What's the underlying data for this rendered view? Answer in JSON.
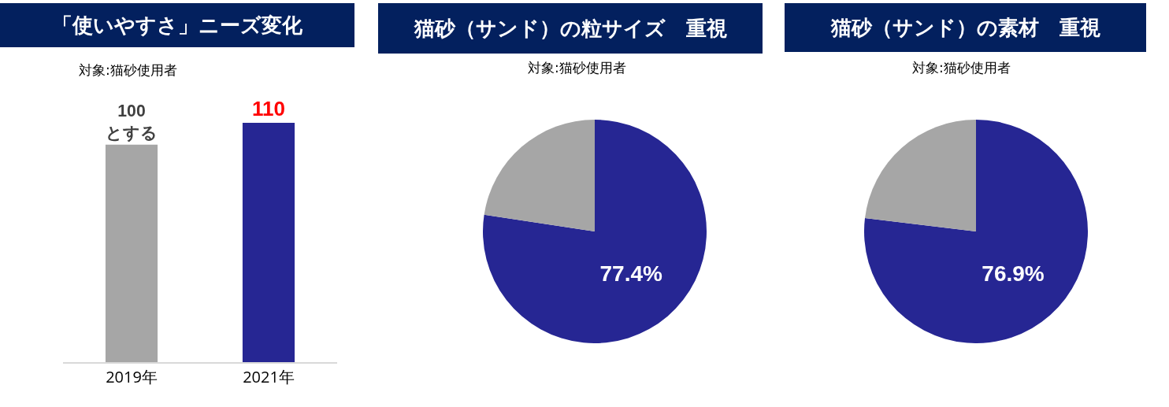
{
  "chart_data": [
    {
      "type": "bar",
      "title": "「使いやすさ」ニーズ変化",
      "subtitle": "対象:猫砂使用者",
      "categories": [
        "2019年",
        "2021年"
      ],
      "values": [
        100,
        110
      ],
      "colors": [
        "#a6a6a6",
        "#262693"
      ],
      "value_labels": [
        "100\nとする",
        "110"
      ],
      "tick_labels": "x",
      "legend": false
    },
    {
      "type": "pie",
      "title": "猫砂（サンド）の粒サイズ　重視",
      "subtitle": "対象:猫砂使用者",
      "categories": [
        null,
        null
      ],
      "values": [
        77.4,
        22.6
      ],
      "colors": [
        "#262693",
        "#a6a6a6"
      ],
      "value_labels": [
        "77.4%",
        null
      ],
      "legend": false
    },
    {
      "type": "pie",
      "title": "猫砂（サンド）の素材　重視",
      "subtitle": "対象:猫砂使用者",
      "categories": [
        null,
        null
      ],
      "values": [
        76.9,
        23.1
      ],
      "colors": [
        "#262693",
        "#a6a6a6"
      ],
      "value_labels": [
        "76.9%",
        null
      ],
      "legend": false
    }
  ]
}
